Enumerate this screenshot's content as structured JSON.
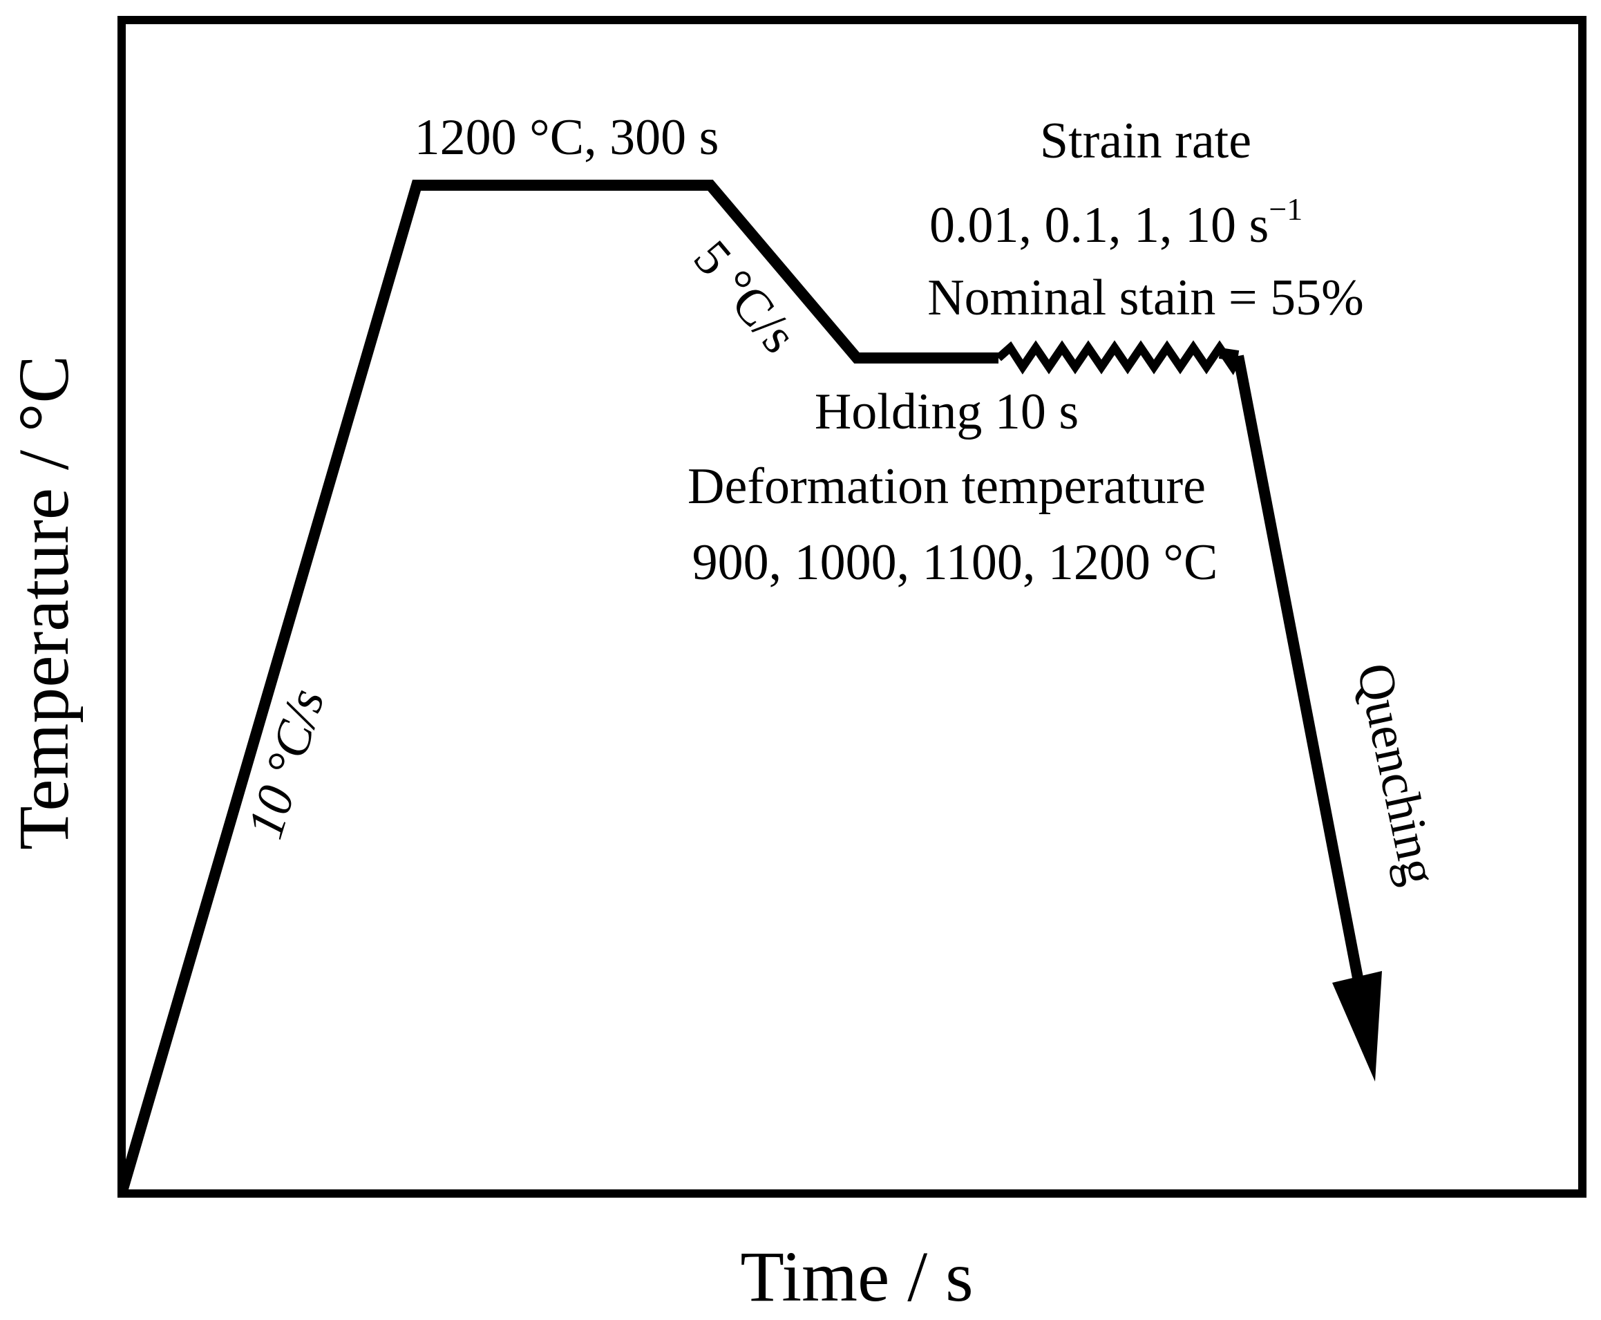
{
  "axes": {
    "x_label": "Time / s",
    "y_label": "Temperature / °C"
  },
  "segments": {
    "heating_rate": "10 °C/s",
    "soak": "1200 °C, 300 s",
    "cooling_rate": "5 °C/s",
    "holding": "Holding 10 s",
    "quenching": "Quenching"
  },
  "deformation": {
    "temperature_title": "Deformation temperature",
    "temperatures": "900, 1000, 1100, 1200 °C",
    "strain_rate_title": "Strain rate",
    "strain_rates": "0.01, 0.1, 1, 10 s",
    "strain_rate_exponent": "−1",
    "nominal_strain": "Nominal stain = 55%"
  },
  "colors": {
    "line": "#000000",
    "background": "#ffffff"
  }
}
